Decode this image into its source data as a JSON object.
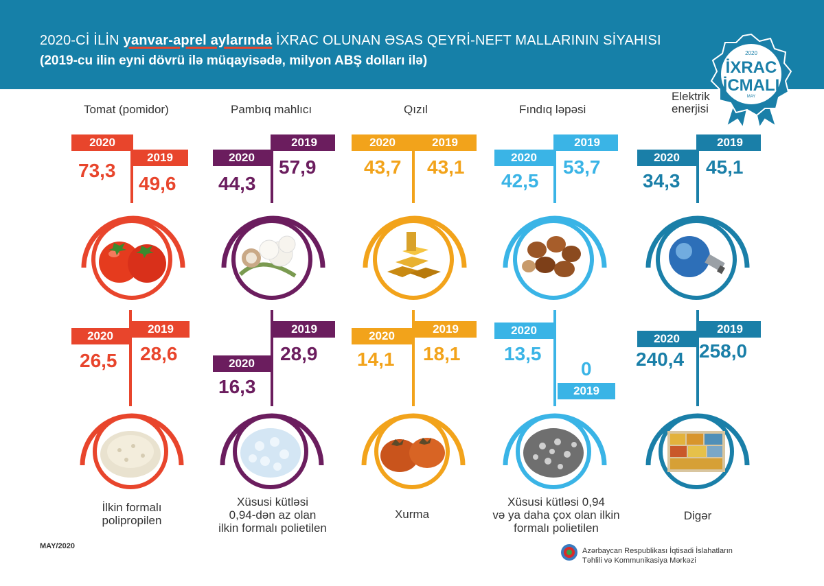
{
  "header": {
    "title_part1": "2020-Cİ İLİN ",
    "title_highlight": "yanvar-aprel aylarında",
    "title_part2": " İXRAC OLUNAN ƏSAS QEYRİ-NEFT MALLARININ SİYAHISI",
    "subtitle": "(2019-cu ilin eyni dövrü ilə müqayisədə, milyon ABŞ dolları ilə)"
  },
  "badge": {
    "year": "2020",
    "line1": "İXRAC",
    "line2": "İCMALI",
    "month": "MAY"
  },
  "labels": {
    "y2020": "2020",
    "y2019": "2019"
  },
  "colors": {
    "red": "#e8452c",
    "purple": "#6b1d5e",
    "orange": "#f2a31b",
    "lightblue": "#3ab4e6",
    "blue": "#1a7fa8"
  },
  "chart_data": {
    "type": "table",
    "title": "2020-Cİ İLİN yanvar-aprel aylarında İXRAC OLUNAN ƏSAS QEYRİ-NEFT MALLARININ SİYAHISI",
    "unit": "milyon ABŞ dolları",
    "series_names": [
      "2020",
      "2019"
    ],
    "items": [
      {
        "name": "Tomat (pomidor)",
        "v2020": "73,3",
        "v2019": "49,6",
        "icon": "tomato-icon"
      },
      {
        "name": "Pambıq mahlıcı",
        "v2020": "44,3",
        "v2019": "57,9",
        "icon": "cotton-icon"
      },
      {
        "name": "Qızıl",
        "v2020": "43,7",
        "v2019": "43,1",
        "icon": "gold-bars-icon"
      },
      {
        "name": "Fındıq ləpəsi",
        "v2020": "42,5",
        "v2019": "53,7",
        "icon": "hazelnut-icon"
      },
      {
        "name": "Elektrik enerjisi",
        "v2020": "34,3",
        "v2019": "45,1",
        "icon": "light-bulb-icon"
      },
      {
        "name": "İlkin formalı polipropilen",
        "v2020": "26,5",
        "v2019": "28,6",
        "icon": "polypropylene-granules-icon"
      },
      {
        "name": "Xüsusi kütləsi 0,94-dən az olan ilkin formalı polietilen",
        "v2020": "16,3",
        "v2019": "28,9",
        "icon": "polyethylene-granules-icon"
      },
      {
        "name": "Xurma",
        "v2020": "14,1",
        "v2019": "18,1",
        "icon": "persimmon-icon"
      },
      {
        "name": "Xüsusi kütləsi 0,94 və ya daha çox olan ilkin formalı polietilen",
        "v2020": "13,5",
        "v2019": "0",
        "icon": "polyethylene-dark-granules-icon"
      },
      {
        "name": "Digər",
        "v2020": "240,4",
        "v2019": "258,0",
        "icon": "containers-icon"
      }
    ]
  },
  "text": {
    "cat_1": "Tomat (pomidor)",
    "cat_2": "Pambıq mahlıcı",
    "cat_3": "Qızıl",
    "cat_4": "Fındıq ləpəsi",
    "cat_5_l1": "Elektrik",
    "cat_5_l2": "enerjisi",
    "cat_6_l1": "İlkin formalı",
    "cat_6_l2": "polipropilen",
    "cat_7_l1": "Xüsusi kütləsi",
    "cat_7_l2": "0,94-dən az olan",
    "cat_7_l3": "ilkin formalı polietilen",
    "cat_8": "Xurma",
    "cat_9_l1": "Xüsusi kütləsi 0,94",
    "cat_9_l2": "və ya daha çox olan ilkin",
    "cat_9_l3": "formalı polietilen",
    "cat_10": "Digər"
  },
  "footer": {
    "date": "MAY/2020",
    "org_line1": "Azərbaycan Respublikası İqtisadi İslahatların",
    "org_line2": "Təhlili və Kommunikasiya Mərkəzi"
  }
}
